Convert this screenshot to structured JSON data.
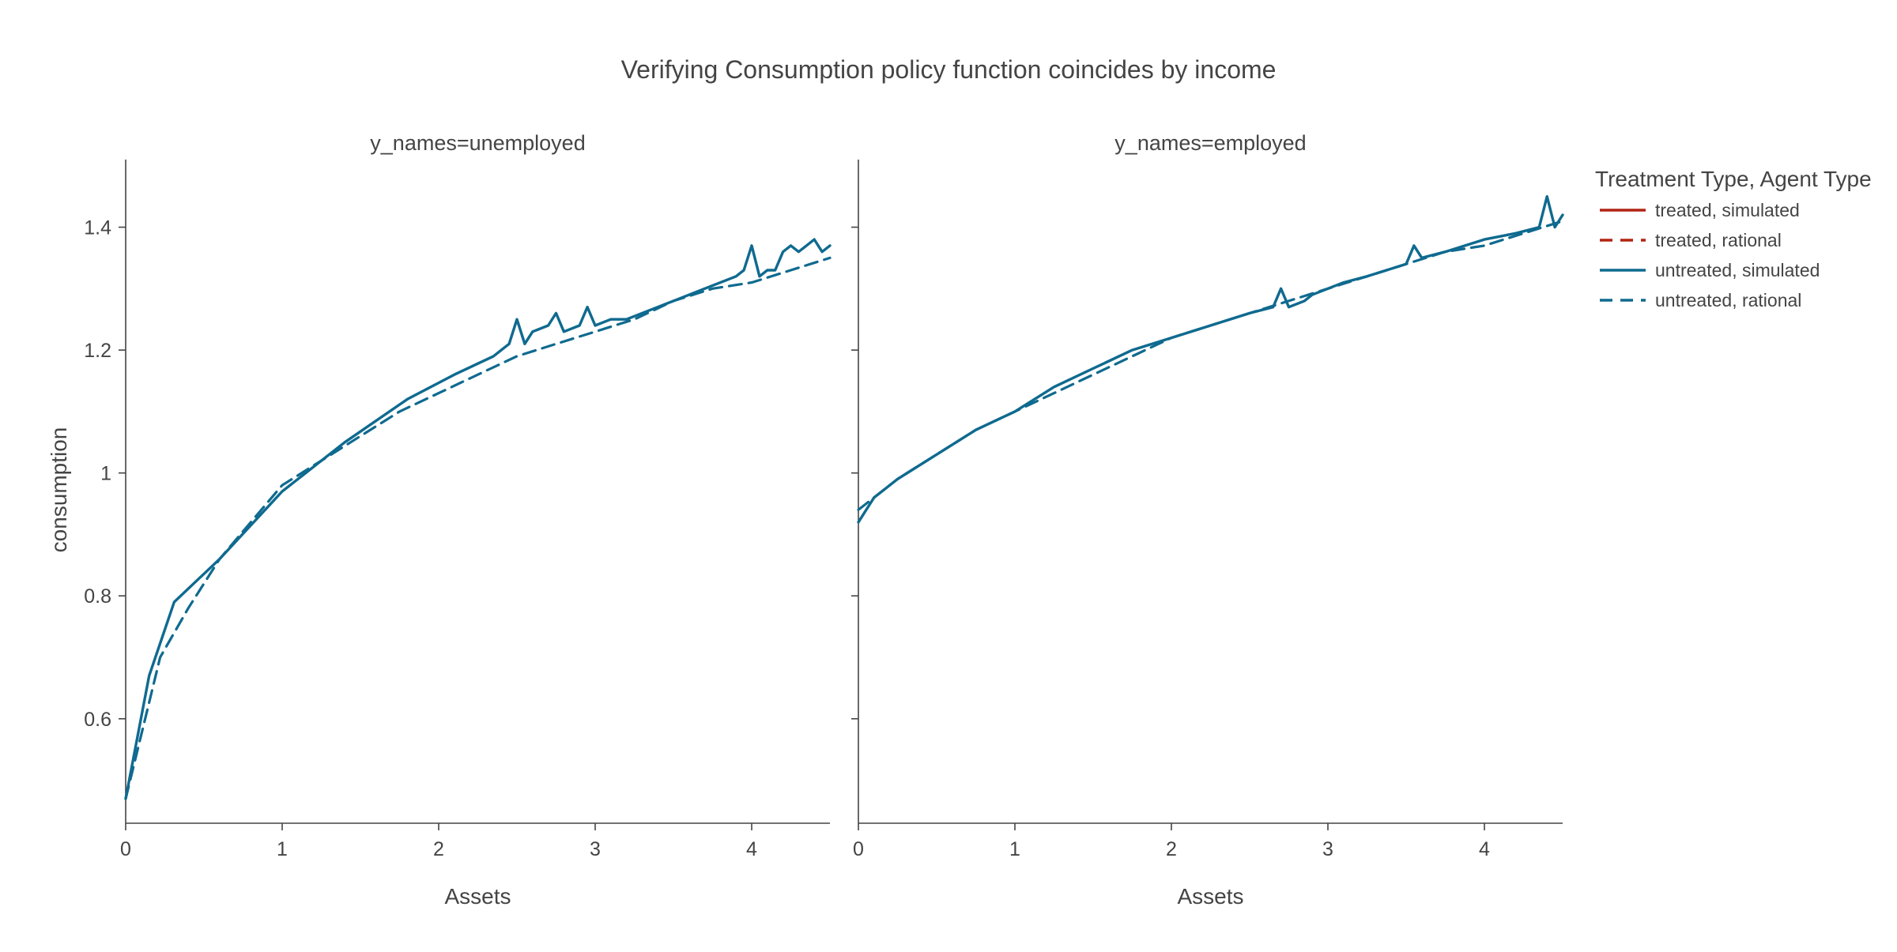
{
  "chart_data": {
    "type": "line",
    "title": "Verifying Consumption policy function coincides by income",
    "ylabel": "consumption",
    "xlabel": "Assets",
    "legend": {
      "title": "Treatment Type, Agent Type",
      "placement": "top-right",
      "entries": [
        {
          "label": "treated, simulated",
          "color": "#b22412",
          "dash": "solid"
        },
        {
          "label": "treated, rational",
          "color": "#b22412",
          "dash": "dashed"
        },
        {
          "label": "untreated, simulated",
          "color": "#0f6a8f",
          "dash": "solid"
        },
        {
          "label": "untreated, rational",
          "color": "#0f6a8f",
          "dash": "dashed"
        }
      ]
    },
    "grid": false,
    "ylim": [
      0.43,
      1.51
    ],
    "yticks": [
      0.6,
      0.8,
      1,
      1.2,
      1.4
    ],
    "ytick_labels": [
      "0.6",
      "0.8",
      "1",
      "1.2",
      "1.4"
    ],
    "panels": [
      {
        "subtitle": "y_names=unemployed",
        "xlabel": "Assets",
        "xlim": [
          0,
          4.5
        ],
        "xticks": [
          0,
          1,
          2,
          3,
          4
        ],
        "xtick_labels": [
          "0",
          "1",
          "2",
          "3",
          "4"
        ],
        "series": [
          {
            "name": "untreated, simulated",
            "color": "#0f6a8f",
            "dash": "solid",
            "x": [
              0,
              0.15,
              0.31,
              0.6,
              1.0,
              1.4,
              1.8,
              2.1,
              2.35,
              2.45,
              2.5,
              2.55,
              2.6,
              2.7,
              2.75,
              2.8,
              2.9,
              2.95,
              3.0,
              3.1,
              3.2,
              3.5,
              3.7,
              3.8,
              3.9,
              3.95,
              4.0,
              4.05,
              4.1,
              4.15,
              4.2,
              4.25,
              4.3,
              4.35,
              4.4,
              4.45,
              4.5
            ],
            "y": [
              0.47,
              0.67,
              0.79,
              0.86,
              0.97,
              1.05,
              1.12,
              1.16,
              1.19,
              1.21,
              1.25,
              1.21,
              1.23,
              1.24,
              1.26,
              1.23,
              1.24,
              1.27,
              1.24,
              1.25,
              1.25,
              1.28,
              1.3,
              1.31,
              1.32,
              1.33,
              1.37,
              1.32,
              1.33,
              1.33,
              1.36,
              1.37,
              1.36,
              1.37,
              1.38,
              1.36,
              1.37
            ]
          },
          {
            "name": "untreated, rational",
            "color": "#0f6a8f",
            "dash": "dashed",
            "x": [
              0,
              0.22,
              0.4,
              0.6,
              0.8,
              1.0,
              1.25,
              1.5,
              1.75,
              2.0,
              2.25,
              2.5,
              2.75,
              3.0,
              3.25,
              3.5,
              3.75,
              4.0,
              4.25,
              4.5
            ],
            "y": [
              0.47,
              0.7,
              0.78,
              0.86,
              0.92,
              0.98,
              1.02,
              1.06,
              1.1,
              1.13,
              1.16,
              1.19,
              1.21,
              1.23,
              1.25,
              1.28,
              1.3,
              1.31,
              1.33,
              1.35
            ]
          }
        ]
      },
      {
        "subtitle": "y_names=employed",
        "xlabel": "Assets",
        "xlim": [
          0,
          4.5
        ],
        "xticks": [
          0,
          1,
          2,
          3,
          4
        ],
        "xtick_labels": [
          "0",
          "1",
          "2",
          "3",
          "4"
        ],
        "series": [
          {
            "name": "untreated, simulated",
            "color": "#0f6a8f",
            "dash": "solid",
            "x": [
              0,
              0.1,
              0.25,
              0.5,
              0.75,
              1.0,
              1.25,
              1.5,
              1.75,
              2.0,
              2.25,
              2.5,
              2.65,
              2.7,
              2.75,
              2.85,
              2.9,
              3.0,
              3.1,
              3.25,
              3.5,
              3.55,
              3.6,
              3.75,
              4.0,
              4.2,
              4.35,
              4.4,
              4.45,
              4.5
            ],
            "y": [
              0.92,
              0.96,
              0.99,
              1.03,
              1.07,
              1.1,
              1.14,
              1.17,
              1.2,
              1.22,
              1.24,
              1.26,
              1.27,
              1.3,
              1.27,
              1.28,
              1.29,
              1.3,
              1.31,
              1.32,
              1.34,
              1.37,
              1.35,
              1.36,
              1.38,
              1.39,
              1.4,
              1.45,
              1.4,
              1.42
            ]
          },
          {
            "name": "untreated, rational",
            "color": "#0f6a8f",
            "dash": "dashed",
            "x": [
              0,
              0.25,
              0.5,
              0.75,
              1.0,
              1.25,
              1.5,
              1.75,
              2.0,
              2.25,
              2.5,
              2.75,
              3.0,
              3.25,
              3.5,
              3.75,
              4.0,
              4.25,
              4.5
            ],
            "y": [
              0.94,
              0.99,
              1.03,
              1.07,
              1.1,
              1.13,
              1.16,
              1.19,
              1.22,
              1.24,
              1.26,
              1.28,
              1.3,
              1.32,
              1.34,
              1.36,
              1.37,
              1.39,
              1.41
            ]
          }
        ]
      }
    ]
  }
}
